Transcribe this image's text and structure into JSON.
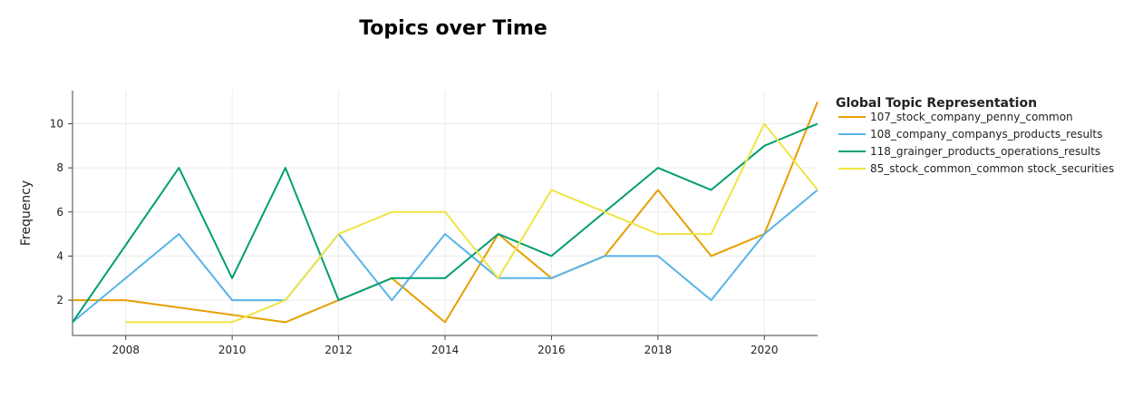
{
  "chart_data": {
    "type": "line",
    "title": "Topics over Time",
    "xlabel": "",
    "ylabel": "Frequency",
    "xlim": [
      2007,
      2021
    ],
    "ylim": [
      0.4,
      11.5
    ],
    "xticks": [
      2008,
      2010,
      2012,
      2014,
      2016,
      2018,
      2020
    ],
    "yticks": [
      2,
      4,
      6,
      8,
      10
    ],
    "grid": true,
    "legend_title": "Global Topic Representation",
    "legend_position": "right",
    "series": [
      {
        "name": "107_stock_company_penny_common",
        "color": "#E69F00",
        "x": [
          2007,
          2008,
          2011,
          2012,
          2013,
          2014,
          2015,
          2016,
          2017,
          2018,
          2019,
          2020,
          2021
        ],
        "y": [
          2,
          2,
          1,
          2,
          3,
          1,
          5,
          3,
          4,
          7,
          4,
          5,
          11
        ]
      },
      {
        "name": "108_company_companys_products_results",
        "color": "#56B4E9",
        "x": [
          2007,
          2009,
          2010,
          2011,
          2012,
          2013,
          2014,
          2015,
          2016,
          2017,
          2018,
          2019,
          2020,
          2021
        ],
        "y": [
          1,
          5,
          2,
          2,
          5,
          2,
          5,
          3,
          3,
          4,
          4,
          2,
          5,
          7
        ]
      },
      {
        "name": "118_grainger_products_operations_results",
        "color": "#009E73",
        "x": [
          2007,
          2009,
          2010,
          2011,
          2012,
          2013,
          2014,
          2015,
          2016,
          2018,
          2019,
          2020,
          2021
        ],
        "y": [
          1,
          8,
          3,
          8,
          2,
          3,
          3,
          5,
          4,
          8,
          7,
          9,
          10
        ]
      },
      {
        "name": "85_stock_common_common stock_securities",
        "color": "#F0E442",
        "x": [
          2008,
          2010,
          2011,
          2012,
          2013,
          2014,
          2015,
          2016,
          2018,
          2019,
          2020,
          2021
        ],
        "y": [
          1,
          1,
          2,
          5,
          6,
          6,
          3,
          7,
          5,
          5,
          10,
          7
        ]
      }
    ]
  }
}
